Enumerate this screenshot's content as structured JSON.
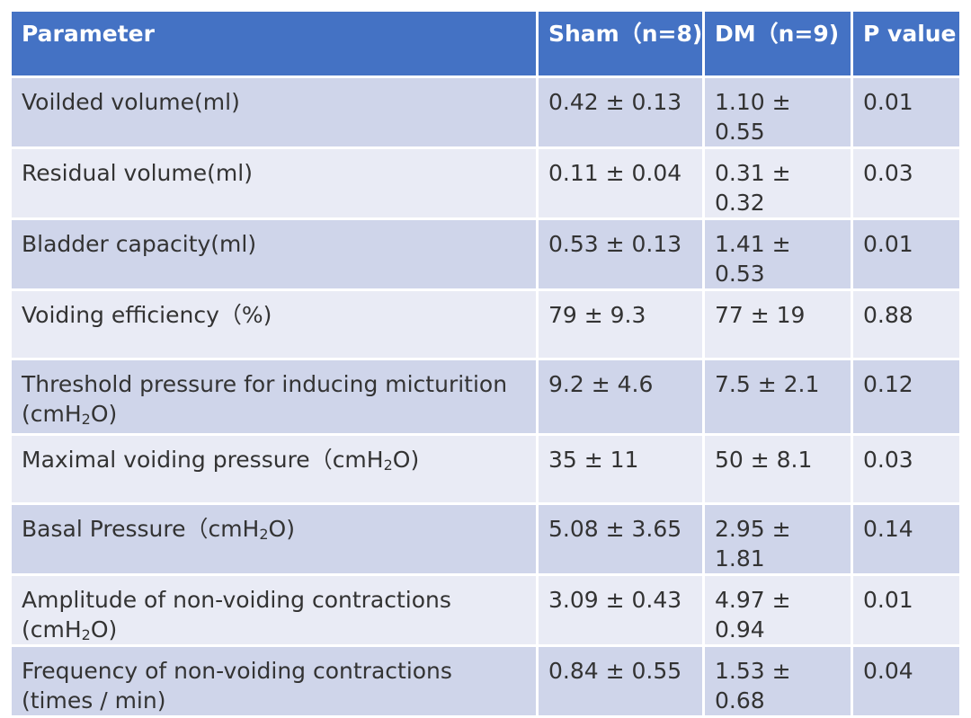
{
  "table": {
    "headers": {
      "parameter": "Parameter",
      "sham": "Sham（n=8)",
      "dm": "DM（n=9)",
      "p_value": "P value"
    },
    "rows": [
      {
        "parameter": "Voilded volume(ml)",
        "sham": "0.42 ± 0.13",
        "dm": "1.10 ± 0.55",
        "p": "0.01"
      },
      {
        "parameter": "Residual volume(ml)",
        "sham": "0.11 ± 0.04",
        "dm": "0.31 ± 0.32",
        "p": "0.03"
      },
      {
        "parameter": "Bladder capacity(ml)",
        "sham": "0.53 ± 0.13",
        "dm": "1.41 ± 0.53",
        "p": "0.01"
      },
      {
        "parameter": "Voiding efficiency（%)",
        "sham": "79 ± 9.3",
        "dm": "77 ± 19",
        "p": "0.88"
      },
      {
        "parameter_main": "Threshold pressure for inducing micturition",
        "unit_pre": "(cmH",
        "unit_sub": "2",
        "unit_post": "O)",
        "sham": "9.2 ± 4.6",
        "dm": "7.5 ± 2.1",
        "p": "0.12"
      },
      {
        "parameter_main": "Maximal voiding pressure（cmH",
        "unit_sub": "2",
        "unit_post": "O)",
        "sham": "35 ± 11",
        "dm": "50 ± 8.1",
        "p": "0.03"
      },
      {
        "parameter_main": "Basal Pressure（cmH",
        "unit_sub": "2",
        "unit_post": "O)",
        "sham": "5.08 ± 3.65",
        "dm": "2.95 ± 1.81",
        "p": "0.14"
      },
      {
        "parameter_main": "Amplitude of non-voiding contractions",
        "unit_pre": "(cmH",
        "unit_sub": "2",
        "unit_post": "O)",
        "sham": "3.09 ± 0.43",
        "dm": "4.97 ± 0.94",
        "p": "0.01"
      },
      {
        "parameter_main": "Frequency of non-voiding contractions",
        "unit_line": "(times / min)",
        "sham": "0.84 ± 0.55",
        "dm": "1.53 ± 0.68",
        "p": "0.04"
      }
    ]
  }
}
